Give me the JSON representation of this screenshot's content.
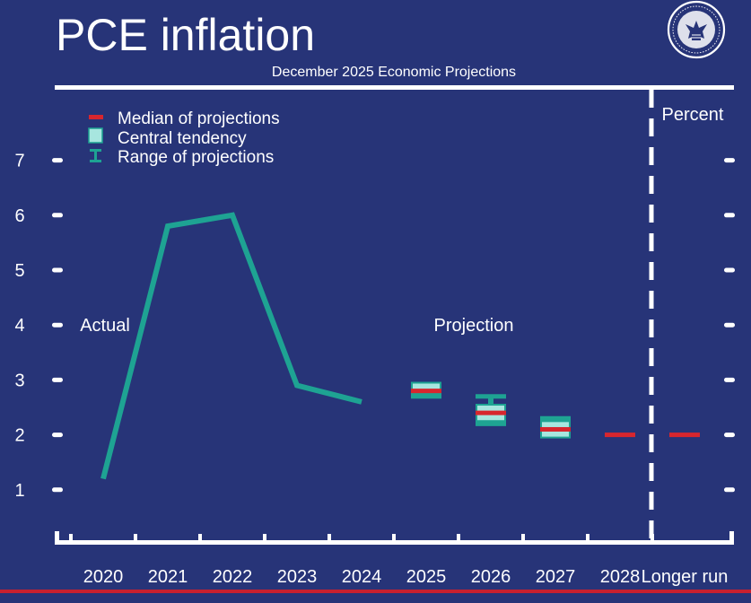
{
  "colors": {
    "background": "#273478",
    "foreground": "#ffffff",
    "line": "#1ea393",
    "tendency": "#a7e6df",
    "range": "#1ea393",
    "median": "#d7262e",
    "bottom_rule": "#c8202f"
  },
  "icons": {
    "seal": "federal-reserve-seal-icon"
  },
  "chart_data": {
    "type": "line",
    "title": "PCE inflation",
    "subtitle": "December 2025 Economic Projections",
    "unit_label": "Percent",
    "ylim": [
      0,
      7.5
    ],
    "yticks": [
      1,
      2,
      3,
      4,
      5,
      6,
      7
    ],
    "categories": [
      "2020",
      "2021",
      "2022",
      "2023",
      "2024",
      "2025",
      "2026",
      "2027",
      "2028",
      "Longer run"
    ],
    "annotations": {
      "actual": "Actual",
      "projection": "Projection"
    },
    "legend": {
      "position": "top-left",
      "items": [
        {
          "label": "Median of projections",
          "marker": "median"
        },
        {
          "label": "Central tendency",
          "marker": "tendency"
        },
        {
          "label": "Range of projections",
          "marker": "range"
        }
      ]
    },
    "actual_series": [
      {
        "x": "2020",
        "y": 1.2
      },
      {
        "x": "2021",
        "y": 5.8
      },
      {
        "x": "2022",
        "y": 6.0
      },
      {
        "x": "2023",
        "y": 2.9
      },
      {
        "x": "2024",
        "y": 2.6
      }
    ],
    "projections": [
      {
        "x": "2025",
        "median": 2.8,
        "tendency_low": 2.8,
        "tendency_high": 2.9,
        "range_low": 2.7,
        "range_high": 2.9
      },
      {
        "x": "2026",
        "median": 2.4,
        "tendency_low": 2.3,
        "tendency_high": 2.5,
        "range_low": 2.2,
        "range_high": 2.7
      },
      {
        "x": "2027",
        "median": 2.1,
        "tendency_low": 2.0,
        "tendency_high": 2.2,
        "range_low": 2.0,
        "range_high": 2.3
      },
      {
        "x": "2028",
        "median": 2.0
      },
      {
        "x": "Longer run",
        "median": 2.0
      }
    ]
  }
}
